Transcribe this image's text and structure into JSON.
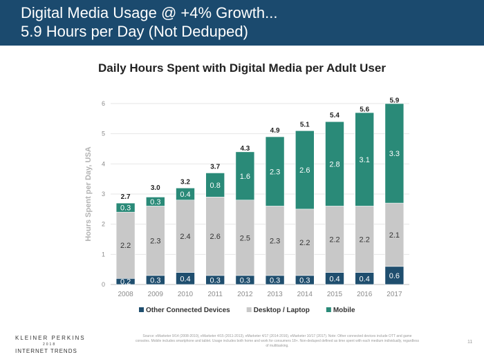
{
  "header": {
    "line1": "Digital Media Usage @ +4% Growth...",
    "line2": "5.9 Hours per Day (Not Deduped)"
  },
  "colors": {
    "header_bg": "#1b4a6e",
    "other_connected_devices": "#1f4e6e",
    "desktop_laptop": "#c8c8c8",
    "mobile": "#2a8a78"
  },
  "chart_data": {
    "type": "bar",
    "stacked": true,
    "title": "Daily Hours Spent with Digital Media per Adult User",
    "xlabel": "",
    "ylabel": "Hours Spent per Day, USA",
    "ylim": [
      0,
      6
    ],
    "yticks": [
      0,
      1,
      2,
      3,
      4,
      5,
      6
    ],
    "grid": true,
    "legend_position": "bottom",
    "categories": [
      "2008",
      "2009",
      "2010",
      "2011",
      "2012",
      "2013",
      "2014",
      "2015",
      "2016",
      "2017"
    ],
    "series": [
      {
        "name": "Other Connected Devices",
        "color": "#1f4e6e",
        "values": [
          0.2,
          0.3,
          0.4,
          0.3,
          0.3,
          0.3,
          0.3,
          0.4,
          0.4,
          0.6
        ]
      },
      {
        "name": "Desktop / Laptop",
        "color": "#c8c8c8",
        "values": [
          2.2,
          2.3,
          2.4,
          2.6,
          2.5,
          2.3,
          2.2,
          2.2,
          2.2,
          2.1
        ]
      },
      {
        "name": "Mobile",
        "color": "#2a8a78",
        "values": [
          0.3,
          0.3,
          0.4,
          0.8,
          1.6,
          2.3,
          2.6,
          2.8,
          3.1,
          3.3
        ]
      }
    ],
    "totals": [
      2.7,
      3.0,
      3.2,
      3.7,
      4.3,
      4.9,
      5.1,
      5.4,
      5.6,
      5.9
    ]
  },
  "footer": {
    "brand_line1": "KLEINER PERKINS",
    "brand_line2": "2018",
    "brand_line3": "INTERNET TRENDS",
    "source": "Source: eMarketer 9/14 (2008-2010), eMarketer 4/15 (2011-2013), eMarketer 4/17 (2014-2016), eMarketer 10/17 (2017). Note: Other connected devices include OTT and game consoles. Mobile includes smartphone and tablet. Usage includes both home and work for consumers 18+. Non-deduped defined as time spent with each medium individually, regardless of multitasking.",
    "page_number": "11"
  }
}
